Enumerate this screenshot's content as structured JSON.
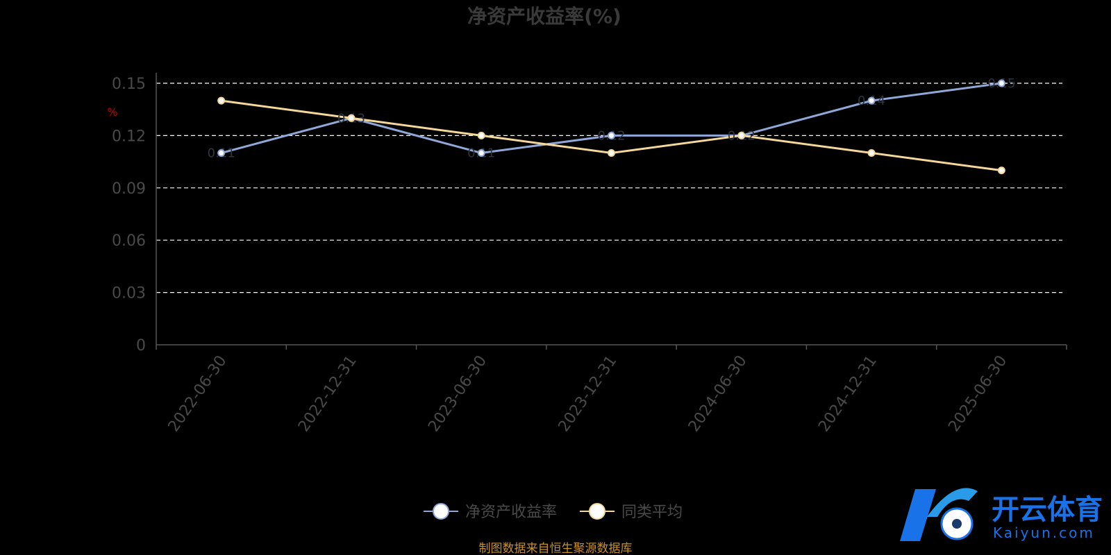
{
  "chart_data": {
    "type": "line",
    "title": "净资产收益率(%)",
    "ylabel": "%",
    "xlabel": "",
    "categories": [
      "2022-06-30",
      "2022-12-31",
      "2023-06-30",
      "2023-12-31",
      "2024-06-30",
      "2024-12-31",
      "2025-06-30"
    ],
    "series": [
      {
        "name": "净资产收益率",
        "values": [
          0.11,
          0.13,
          0.11,
          0.12,
          0.12,
          0.14,
          0.15
        ],
        "color": "#8fa8d8"
      },
      {
        "name": "同类平均",
        "values": [
          0.14,
          0.13,
          0.12,
          0.11,
          0.12,
          0.11,
          0.1
        ],
        "color": "#f5d79a"
      }
    ],
    "ylim": [
      0,
      0.15
    ],
    "yticks": [
      "0",
      "0.03",
      "0.06",
      "0.09",
      "0.12",
      "0.15"
    ],
    "grid": true,
    "legend": "bottom-center"
  },
  "source_text": "制图数据来自恒生聚源数据库",
  "watermark": {
    "name": "开云体育",
    "sub": "Kaiyun.com"
  }
}
